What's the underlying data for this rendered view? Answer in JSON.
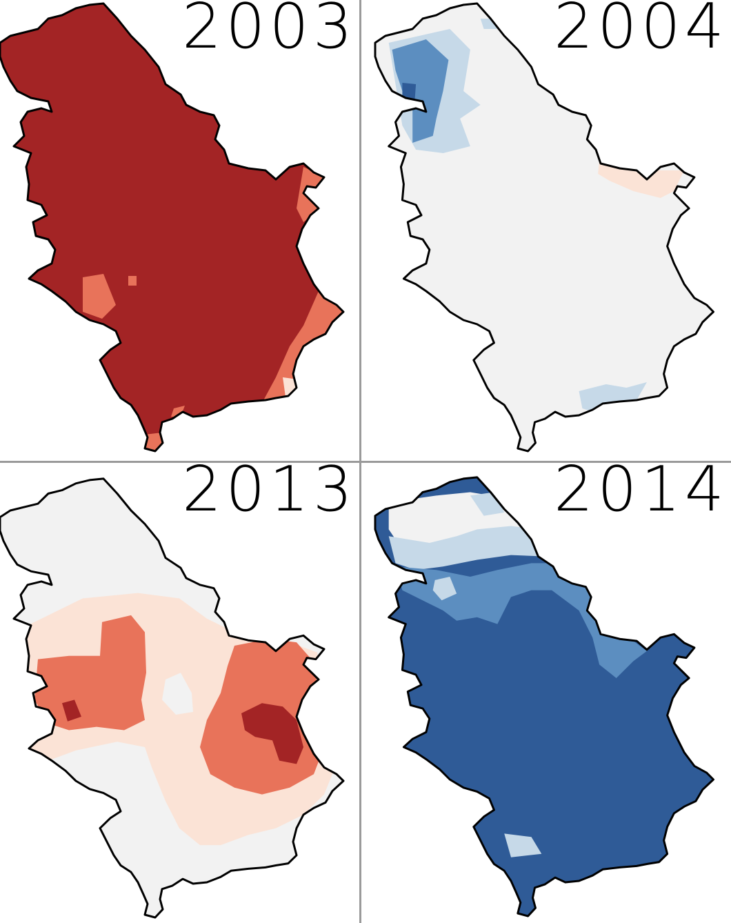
{
  "figure": {
    "panels": [
      {
        "year": "2003",
        "base_color": "#a32425",
        "patches": [
          {
            "color": "#e8735a",
            "pts": [
              [
                440,
                240
              ],
              [
                472,
                255
              ],
              [
                465,
                300
              ],
              [
                440,
                320
              ],
              [
                430,
                300
              ]
            ]
          },
          {
            "color": "#e8735a",
            "pts": [
              [
                120,
                400
              ],
              [
                150,
                395
              ],
              [
                168,
                440
              ],
              [
                148,
                460
              ],
              [
                120,
                450
              ]
            ]
          },
          {
            "color": "#e8735a",
            "pts": [
              [
                186,
                398
              ],
              [
                198,
                398
              ],
              [
                198,
                412
              ],
              [
                186,
                412
              ]
            ]
          },
          {
            "color": "#e8735a",
            "pts": [
              [
                462,
                420
              ],
              [
                498,
                450
              ],
              [
                492,
                480
              ],
              [
                470,
                500
              ],
              [
                448,
                520
              ],
              [
                420,
                570
              ],
              [
                380,
                582
              ],
              [
                400,
                545
              ],
              [
                420,
                500
              ],
              [
                440,
                470
              ]
            ]
          },
          {
            "color": "#fbe3d6",
            "pts": [
              [
                410,
                545
              ],
              [
                432,
                548
              ],
              [
                438,
                575
              ],
              [
                415,
                580
              ]
            ]
          },
          {
            "color": "#e8735a",
            "pts": [
              [
                252,
                590
              ],
              [
                268,
                586
              ],
              [
                262,
                602
              ],
              [
                248,
                602
              ]
            ]
          },
          {
            "color": "#e8735a",
            "pts": [
              [
                210,
                628
              ],
              [
                235,
                625
              ],
              [
                236,
                650
              ],
              [
                212,
                652
              ]
            ]
          }
        ]
      },
      {
        "year": "2004",
        "base_color": "#f2f2f2",
        "patches": [
          {
            "color": "#c6d9e8",
            "pts": [
              [
                20,
                60
              ],
              [
                110,
                40
              ],
              [
                140,
                70
              ],
              [
                130,
                130
              ],
              [
                155,
                150
              ],
              [
                125,
                170
              ],
              [
                140,
                210
              ],
              [
                100,
                220
              ],
              [
                60,
                215
              ],
              [
                40,
                180
              ],
              [
                30,
                120
              ]
            ]
          },
          {
            "color": "#5c8ec0",
            "pts": [
              [
                25,
                70
              ],
              [
                75,
                55
              ],
              [
                108,
                85
              ],
              [
                100,
                130
              ],
              [
                90,
                170
              ],
              [
                85,
                195
              ],
              [
                55,
                205
              ],
              [
                55,
                150
              ],
              [
                40,
                130
              ],
              [
                30,
                100
              ]
            ]
          },
          {
            "color": "#2f5b97",
            "pts": [
              [
                40,
                118
              ],
              [
                60,
                120
              ],
              [
                58,
                148
              ],
              [
                40,
                150
              ]
            ]
          },
          {
            "color": "#c6d9e8",
            "pts": [
              [
                155,
                25
              ],
              [
                195,
                25
              ],
              [
                200,
                40
              ],
              [
                160,
                40
              ]
            ]
          },
          {
            "color": "#fbe3d6",
            "pts": [
              [
                330,
                230
              ],
              [
                370,
                238
              ],
              [
                420,
                245
              ],
              [
                455,
                245
              ],
              [
                440,
                275
              ],
              [
                420,
                285
              ],
              [
                380,
                275
              ],
              [
                345,
                260
              ],
              [
                328,
                250
              ]
            ]
          },
          {
            "color": "#c6d9e8",
            "pts": [
              [
                300,
                565
              ],
              [
                340,
                555
              ],
              [
                370,
                560
              ],
              [
                400,
                552
              ],
              [
                385,
                578
              ],
              [
                350,
                588
              ],
              [
                320,
                595
              ],
              [
                305,
                590
              ]
            ]
          }
        ]
      },
      {
        "year": "2013",
        "base_color": "#f2f2f2",
        "patches": [
          {
            "color": "#fbe3d6",
            "pts": [
              [
                40,
                220
              ],
              [
                120,
                180
              ],
              [
                200,
                172
              ],
              [
                260,
                180
              ],
              [
                300,
                210
              ],
              [
                340,
                230
              ],
              [
                420,
                245
              ],
              [
                460,
                260
              ],
              [
                470,
                330
              ],
              [
                490,
                420
              ],
              [
                470,
                470
              ],
              [
                440,
                500
              ],
              [
                400,
                520
              ],
              [
                360,
                530
              ],
              [
                320,
                545
              ],
              [
                290,
                545
              ],
              [
                260,
                520
              ],
              [
                240,
                480
              ],
              [
                220,
                430
              ],
              [
                210,
                400
              ],
              [
                170,
                392
              ],
              [
                110,
                405
              ],
              [
                70,
                420
              ],
              [
                40,
                400
              ],
              [
                30,
                330
              ]
            ]
          },
          {
            "color": "#f2f2f2",
            "pts": [
              [
                240,
                300
              ],
              [
                262,
                290
              ],
              [
                278,
                320
              ],
              [
                280,
                348
              ],
              [
                255,
                352
              ],
              [
                235,
                330
              ]
            ]
          },
          {
            "color": "#e8735a",
            "pts": [
              [
                55,
                270
              ],
              [
                100,
                265
              ],
              [
                145,
                265
              ],
              [
                148,
                215
              ],
              [
                190,
                205
              ],
              [
                210,
                230
              ],
              [
                212,
                290
              ],
              [
                205,
                330
              ],
              [
                210,
                360
              ],
              [
                180,
                375
              ],
              [
                140,
                370
              ],
              [
                100,
                375
              ],
              [
                70,
                365
              ],
              [
                50,
                330
              ]
            ]
          },
          {
            "color": "#e8735a",
            "pts": [
              [
                340,
                250
              ],
              [
                390,
                240
              ],
              [
                430,
                245
              ],
              [
                460,
                280
              ],
              [
                455,
                350
              ],
              [
                470,
                400
              ],
              [
                455,
                440
              ],
              [
                420,
                460
              ],
              [
                380,
                470
              ],
              [
                340,
                460
              ],
              [
                305,
                440
              ],
              [
                290,
                400
              ],
              [
                300,
                360
              ],
              [
                320,
                320
              ],
              [
                330,
                280
              ]
            ]
          },
          {
            "color": "#a32425",
            "pts": [
              [
                350,
                350
              ],
              [
                380,
                335
              ],
              [
                410,
                340
              ],
              [
                430,
                360
              ],
              [
                440,
                400
              ],
              [
                430,
                425
              ],
              [
                405,
                420
              ],
              [
                395,
                390
              ],
              [
                370,
                385
              ],
              [
                355,
                375
              ]
            ]
          },
          {
            "color": "#a32425",
            "pts": [
              [
                90,
                335
              ],
              [
                108,
                330
              ],
              [
                118,
                355
              ],
              [
                98,
                362
              ]
            ]
          }
        ]
      },
      {
        "year": "2014",
        "base_color": "#2f5b97",
        "patches": [
          {
            "color": "#f2f2f2",
            "pts": [
              [
                20,
                40
              ],
              [
                90,
                30
              ],
              [
                140,
                25
              ],
              [
                200,
                35
              ],
              [
                245,
                60
              ],
              [
                255,
                90
              ],
              [
                220,
                100
              ],
              [
                170,
                105
              ],
              [
                130,
                110
              ],
              [
                80,
                115
              ],
              [
                40,
                110
              ],
              [
                20,
                80
              ]
            ]
          },
          {
            "color": "#c6d9e8",
            "pts": [
              [
                20,
                90
              ],
              [
                80,
                100
              ],
              [
                120,
                90
              ],
              [
                150,
                80
              ],
              [
                200,
                75
              ],
              [
                240,
                80
              ],
              [
                260,
                110
              ],
              [
                250,
                120
              ],
              [
                200,
                118
              ],
              [
                150,
                125
              ],
              [
                100,
                135
              ],
              [
                60,
                140
              ],
              [
                30,
                130
              ]
            ]
          },
          {
            "color": "#c6d9e8",
            "pts": [
              [
                140,
                30
              ],
              [
                175,
                25
              ],
              [
                190,
                55
              ],
              [
                160,
                60
              ]
            ]
          },
          {
            "color": "#5c8ec0",
            "pts": [
              [
                30,
                135
              ],
              [
                90,
                140
              ],
              [
                140,
                150
              ],
              [
                180,
                140
              ],
              [
                230,
                130
              ],
              [
                260,
                130
              ],
              [
                300,
                150
              ],
              [
                340,
                200
              ],
              [
                360,
                240
              ],
              [
                380,
                245
              ],
              [
                400,
                260
              ],
              [
                380,
                275
              ],
              [
                355,
                300
              ],
              [
                330,
                280
              ],
              [
                320,
                240
              ],
              [
                300,
                200
              ],
              [
                260,
                170
              ],
              [
                230,
                170
              ],
              [
                200,
                180
              ],
              [
                180,
                220
              ],
              [
                150,
                210
              ],
              [
                120,
                215
              ],
              [
                100,
                200
              ],
              [
                80,
                190
              ],
              [
                40,
                170
              ]
            ]
          },
          {
            "color": "#c6d9e8",
            "pts": [
              [
                88,
                155
              ],
              [
                110,
                150
              ],
              [
                120,
                175
              ],
              [
                98,
                185
              ],
              [
                85,
                170
              ]
            ]
          },
          {
            "color": "#c6d9e8",
            "pts": [
              [
                190,
                530
              ],
              [
                230,
                535
              ],
              [
                245,
                560
              ],
              [
                200,
                565
              ]
            ]
          }
        ]
      }
    ],
    "outline_color": "#000000"
  }
}
